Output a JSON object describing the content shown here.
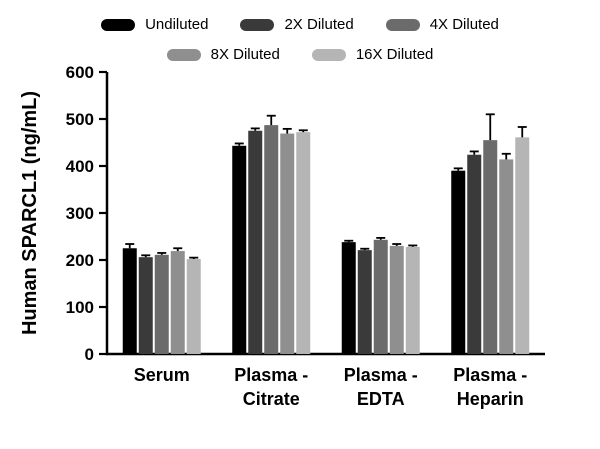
{
  "chart_data": {
    "type": "bar",
    "title": "",
    "ylabel": "Human SPARCL1 (ng/mL)",
    "xlabel": "",
    "ylim": [
      0,
      600
    ],
    "yticks": [
      0,
      100,
      200,
      300,
      400,
      500,
      600
    ],
    "grid": false,
    "legend_position": "top",
    "axis_color": "#000000",
    "error_color": "#000000",
    "categories": [
      [
        "Serum"
      ],
      [
        "Plasma -",
        "Citrate"
      ],
      [
        "Plasma -",
        "EDTA"
      ],
      [
        "Plasma -",
        "Heparin"
      ]
    ],
    "series": [
      {
        "name": "Undiluted",
        "color": "#000000",
        "values": [
          225,
          443,
          238,
          390
        ],
        "errors": [
          9,
          5,
          3,
          5
        ]
      },
      {
        "name": "2X Diluted",
        "color": "#3a3a3a",
        "values": [
          206,
          475,
          221,
          424
        ],
        "errors": [
          4,
          5,
          3,
          7
        ]
      },
      {
        "name": "4X Diluted",
        "color": "#6b6b6b",
        "values": [
          211,
          487,
          243,
          455
        ],
        "errors": [
          4,
          20,
          4,
          55
        ]
      },
      {
        "name": "8X Diluted",
        "color": "#8f8f8f",
        "values": [
          219,
          469,
          230,
          414
        ],
        "errors": [
          6,
          10,
          4,
          12
        ]
      },
      {
        "name": "16X Diluted",
        "color": "#b5b5b5",
        "values": [
          202,
          472,
          228,
          461
        ],
        "errors": [
          3,
          4,
          3,
          22
        ]
      }
    ]
  }
}
